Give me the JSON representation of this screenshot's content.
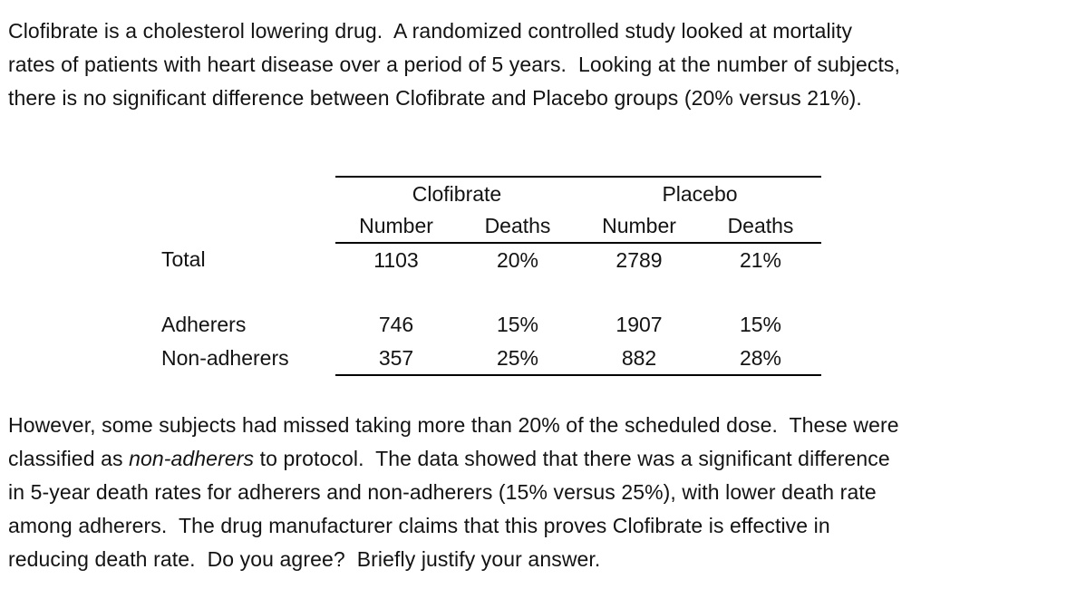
{
  "intro_paragraph": "Clofibrate is a cholesterol lowering drug.  A randomized controlled study looked at mortality\nrates of patients with heart disease over a period of 5 years.  Looking at the number of subjects,\nthere is no significant difference between Clofibrate and Placebo groups (20% versus 21%).",
  "table": {
    "group_headers": [
      "Clofibrate",
      "Placebo"
    ],
    "column_headers": [
      "Number",
      "Deaths",
      "Number",
      "Deaths"
    ],
    "rows": [
      {
        "label": "Total",
        "values": [
          "1103",
          "20%",
          "2789",
          "21%"
        ]
      },
      {
        "label": "Adherers",
        "values": [
          "746",
          "15%",
          "1907",
          "15%"
        ]
      },
      {
        "label": "Non-adherers",
        "values": [
          "357",
          "25%",
          "882",
          "28%"
        ]
      }
    ]
  },
  "closing_paragraph": {
    "part1": "However, some subjects had missed taking more than 20% of the scheduled dose.  These were\nclassified as ",
    "italic": "non-adherers",
    "part2": " to protocol.  The data showed that there was a significant difference\nin 5-year death rates for adherers and non-adherers (15% versus 25%), with lower death rate\namong adherers.  The drug manufacturer claims that this proves Clofibrate is effective in\nreducing death rate.  Do you agree?  Briefly justify your answer."
  }
}
